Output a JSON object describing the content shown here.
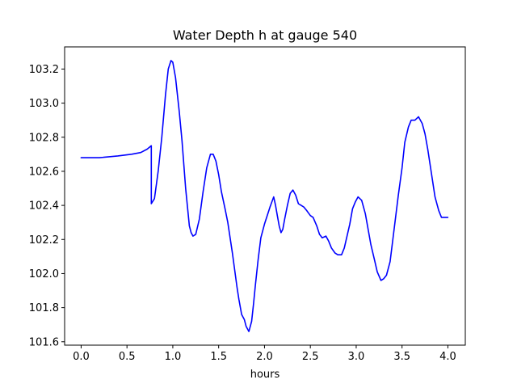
{
  "chart_data": {
    "type": "line",
    "title": "Water Depth h at gauge 540",
    "xlabel": "hours",
    "ylabel": "",
    "xlim": [
      -0.18,
      4.19
    ],
    "ylim": [
      101.58,
      103.33
    ],
    "grid": false,
    "xticks": [
      0.0,
      0.5,
      1.0,
      1.5,
      2.0,
      2.5,
      3.0,
      3.5,
      4.0
    ],
    "xtick_labels": [
      "0.0",
      "0.5",
      "1.0",
      "1.5",
      "2.0",
      "2.5",
      "3.0",
      "3.5",
      "4.0"
    ],
    "yticks": [
      101.6,
      101.8,
      102.0,
      102.2,
      102.4,
      102.6,
      102.8,
      103.0,
      103.2
    ],
    "ytick_labels": [
      "101.6",
      "101.8",
      "102.0",
      "102.2",
      "102.4",
      "102.6",
      "102.8",
      "103.0",
      "103.2"
    ],
    "series": [
      {
        "color": "#0000ff",
        "x": [
          0.0,
          0.2,
          0.4,
          0.55,
          0.65,
          0.72,
          0.765,
          0.765,
          0.8,
          0.84,
          0.88,
          0.92,
          0.95,
          0.98,
          1.0,
          1.03,
          1.07,
          1.1,
          1.14,
          1.18,
          1.2,
          1.22,
          1.25,
          1.29,
          1.33,
          1.37,
          1.41,
          1.44,
          1.47,
          1.5,
          1.53,
          1.57,
          1.6,
          1.65,
          1.7,
          1.72,
          1.75,
          1.78,
          1.8,
          1.83,
          1.86,
          1.88,
          1.9,
          1.93,
          1.96,
          2.0,
          2.03,
          2.06,
          2.08,
          2.1,
          2.12,
          2.14,
          2.16,
          2.18,
          2.2,
          2.22,
          2.25,
          2.28,
          2.31,
          2.34,
          2.37,
          2.4,
          2.43,
          2.46,
          2.5,
          2.53,
          2.57,
          2.6,
          2.63,
          2.67,
          2.7,
          2.73,
          2.77,
          2.8,
          2.84,
          2.87,
          2.9,
          2.93,
          2.96,
          2.99,
          3.02,
          3.06,
          3.1,
          3.13,
          3.16,
          3.2,
          3.23,
          3.27,
          3.3,
          3.33,
          3.37,
          3.4,
          3.43,
          3.46,
          3.5,
          3.53,
          3.57,
          3.6,
          3.64,
          3.68,
          3.72,
          3.75,
          3.78,
          3.82,
          3.86,
          3.9,
          3.93,
          3.96,
          3.98,
          4.0
        ],
        "y": [
          102.68,
          102.68,
          102.69,
          102.7,
          102.71,
          102.73,
          102.75,
          102.41,
          102.44,
          102.6,
          102.8,
          103.05,
          103.2,
          103.25,
          103.24,
          103.15,
          102.95,
          102.78,
          102.5,
          102.28,
          102.24,
          102.22,
          102.23,
          102.32,
          102.48,
          102.62,
          102.7,
          102.7,
          102.66,
          102.58,
          102.48,
          102.38,
          102.3,
          102.12,
          101.92,
          101.85,
          101.76,
          101.73,
          101.69,
          101.66,
          101.72,
          101.82,
          101.93,
          102.08,
          102.21,
          102.29,
          102.34,
          102.39,
          102.42,
          102.45,
          102.4,
          102.34,
          102.28,
          102.24,
          102.26,
          102.32,
          102.4,
          102.47,
          102.49,
          102.46,
          102.41,
          102.4,
          102.39,
          102.37,
          102.34,
          102.33,
          102.28,
          102.23,
          102.21,
          102.22,
          102.19,
          102.15,
          102.12,
          102.11,
          102.11,
          102.15,
          102.22,
          102.29,
          102.38,
          102.42,
          102.45,
          102.43,
          102.35,
          102.26,
          102.17,
          102.08,
          102.01,
          101.96,
          101.97,
          101.99,
          102.07,
          102.2,
          102.33,
          102.46,
          102.62,
          102.77,
          102.86,
          102.9,
          102.9,
          102.92,
          102.88,
          102.82,
          102.73,
          102.59,
          102.45,
          102.37,
          102.33,
          102.33,
          102.33,
          102.33
        ]
      }
    ]
  }
}
